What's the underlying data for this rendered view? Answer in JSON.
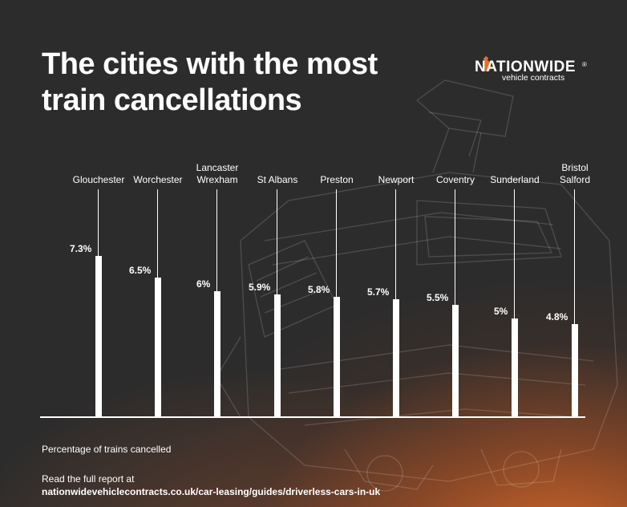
{
  "title": {
    "line1": "The cities with the most",
    "line2": "train cancellations"
  },
  "logo": {
    "wordmark": "NATIONWIDE",
    "registered": "®",
    "tagline": "vehicle contracts"
  },
  "footnote": "Percentage of trains cancelled",
  "report": {
    "intro": "Read the full report at",
    "url": "nationwidevehiclecontracts.co.uk/car-leasing/guides/driverless-cars-in-uk"
  },
  "colors": {
    "bar": "#ffffff",
    "background": "#2c2c2c",
    "accent": "#e86e28"
  },
  "chart_data": {
    "type": "bar",
    "title": "The cities with the most train cancellations",
    "ylabel": "Percentage of trains cancelled",
    "xlabel": "",
    "ylim": [
      0,
      8
    ],
    "bars": [
      {
        "category": [
          "Glouchester"
        ],
        "value": 7.3,
        "label": "7.3%"
      },
      {
        "category": [
          "Worchester"
        ],
        "value": 6.5,
        "label": "6.5%"
      },
      {
        "category": [
          "Lancaster",
          "Wrexham"
        ],
        "value": 6,
        "label": "6%"
      },
      {
        "category": [
          "St Albans"
        ],
        "value": 5.9,
        "label": "5.9%"
      },
      {
        "category": [
          "Preston"
        ],
        "value": 5.8,
        "label": "5.8%"
      },
      {
        "category": [
          "Newport"
        ],
        "value": 5.7,
        "label": "5.7%"
      },
      {
        "category": [
          "Coventry"
        ],
        "value": 5.5,
        "label": "5.5%"
      },
      {
        "category": [
          "Sunderland"
        ],
        "value": 5,
        "label": "5%"
      },
      {
        "category": [
          "Bristol",
          "Salford"
        ],
        "value": 4.8,
        "label": "4.8%"
      }
    ]
  }
}
